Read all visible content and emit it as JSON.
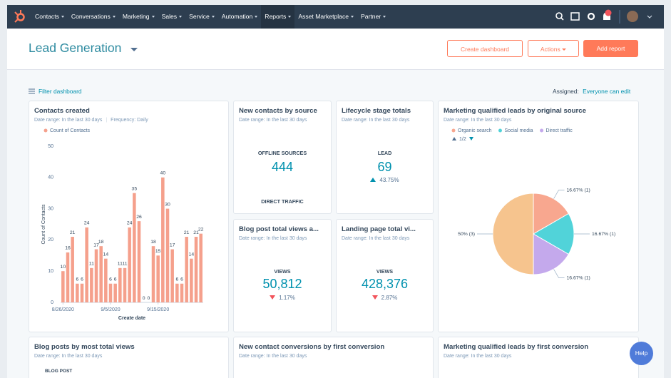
{
  "nav": {
    "items": [
      "Contacts",
      "Conversations",
      "Marketing",
      "Sales",
      "Service",
      "Automation",
      "Reports",
      "Asset Marketplace",
      "Partner"
    ]
  },
  "header": {
    "title": "Lead Generation",
    "buttons": [
      "Create dashboard",
      "Actions",
      "Add report"
    ]
  },
  "toolbar": {
    "filter": "Filter dashboard",
    "assigned_label": "Assigned:",
    "assigned_value": "Everyone can edit"
  },
  "cards": [
    {
      "title": "Contacts created",
      "date_range": "Date range: In the last 30 days",
      "frequency": "Frequency: Daily",
      "chart": {
        "type": "bar",
        "legend": "Count of Contacts",
        "y_label": "Count of Contacts",
        "x_label": "Create date",
        "color": "#f5a08c",
        "categories": [
          "8/26/2020",
          null,
          null,
          null,
          null,
          null,
          null,
          null,
          null,
          null,
          "9/5/2020",
          null,
          null,
          null,
          null,
          null,
          null,
          null,
          null,
          null,
          "9/15/2020",
          null,
          null,
          null,
          null,
          null,
          null,
          null,
          null,
          null
        ],
        "values": [
          10,
          16,
          21,
          6,
          6,
          24,
          11,
          17,
          18,
          14,
          6,
          6,
          11,
          11,
          24,
          35,
          26,
          0,
          0,
          18,
          15,
          40,
          30,
          17,
          6,
          6,
          21,
          14,
          21,
          22
        ],
        "ylim": [
          0,
          50
        ],
        "yticks": [
          0,
          10,
          20,
          30,
          40,
          50
        ],
        "grid": false
      }
    },
    {
      "title": "New contacts by source",
      "date_range": "Date range: In the last 30 days",
      "label": "OFFLINE SOURCES",
      "value": "444",
      "label2": "DIRECT TRAFFIC"
    },
    {
      "title": "Lifecycle stage totals",
      "date_range": "Date range: In the last 30 days",
      "label": "LEAD",
      "value": "69",
      "change": "43.75%"
    },
    {
      "title": "Marketing qualified leads by original source",
      "date_range": "Date range: In the last 30 days",
      "chart": {
        "type": "pie",
        "categories": [
          "Organic search",
          "Social media",
          "Direct traffic",
          null
        ],
        "values": [
          1,
          1,
          1,
          3
        ],
        "value_labels": [
          "16.67% (1)",
          "16.67% (1)",
          "16.67% (1)",
          "50% (3)"
        ],
        "colors": [
          "#f8a78f",
          "#51d3d9",
          "#c4a9ec",
          "#f6c48e"
        ],
        "legend_page": "1/2"
      }
    },
    {
      "title": "Blog post total views a...",
      "date_range": "Date range: In the last 30 days",
      "label": "VIEWS",
      "value": "50,812",
      "change": "1.17%"
    },
    {
      "title": "Landing page total vi...",
      "date_range": "Date range: In the last 30 days",
      "label": "VIEWS",
      "value": "428,376",
      "change": "2.87%"
    },
    {
      "title": "Blog posts by most total views",
      "date_range": "Date range: In the last 30 days",
      "label": "BLOG POST"
    },
    {
      "title": "New contact conversions by first conversion",
      "date_range": "Date range: In the last 30 days"
    },
    {
      "title": "Marketing qualified leads by first conversion",
      "date_range": "Date range: In the last 30 days"
    }
  ],
  "help": "Help"
}
